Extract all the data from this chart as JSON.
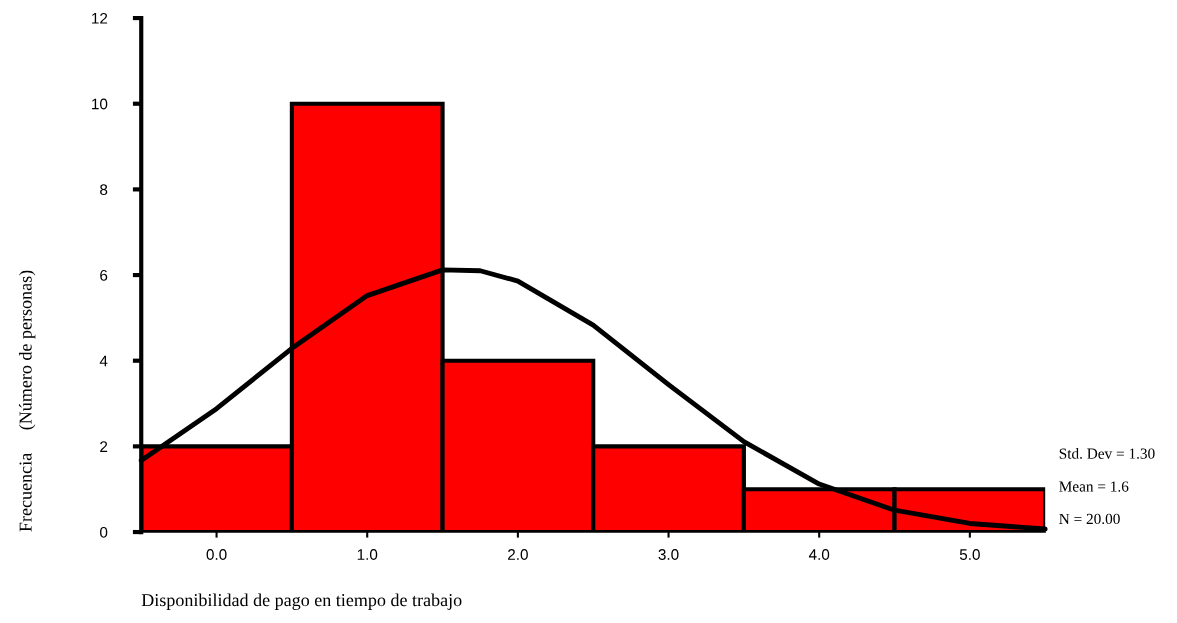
{
  "chart_data": {
    "type": "histogram",
    "xlabel": "Disponibilidad de pago en tiempo de trabajo",
    "ylabel": "Frecuencia     (Número de personas)",
    "bins": [
      -0.5,
      0.5,
      1.5,
      2.5,
      3.5,
      4.5,
      5.5
    ],
    "values": [
      2,
      10,
      4,
      2,
      1,
      1
    ],
    "color": "#ff0000",
    "series": [
      {
        "type": "line",
        "color": "#000000",
        "x": [
          -0.5,
          0,
          0.5,
          1,
          1.5,
          1.75,
          2,
          2.5,
          3,
          3.5,
          4,
          4.5,
          5,
          5.5
        ],
        "values": [
          1.67,
          2.88,
          4.29,
          5.52,
          6.12,
          6.1,
          5.86,
          4.83,
          3.44,
          2.11,
          1.12,
          0.51,
          0.2,
          0.07
        ]
      }
    ],
    "xlim": [
      -0.5,
      5.5
    ],
    "xticks": [
      {
        "value": 0,
        "label": "0.0"
      },
      {
        "value": 1,
        "label": "1.0"
      },
      {
        "value": 2,
        "label": "2.0"
      },
      {
        "value": 3,
        "label": "3.0"
      },
      {
        "value": 4,
        "label": "4.0"
      },
      {
        "value": 5,
        "label": "5.0"
      }
    ],
    "ylim": [
      0,
      12
    ],
    "yticks": [
      0,
      2,
      4,
      6,
      8,
      10,
      12
    ],
    "grid": false,
    "legend": false,
    "annotations": [
      "Std. Dev = 1.30",
      "Mean = 1.6",
      "N = 20.00"
    ]
  }
}
